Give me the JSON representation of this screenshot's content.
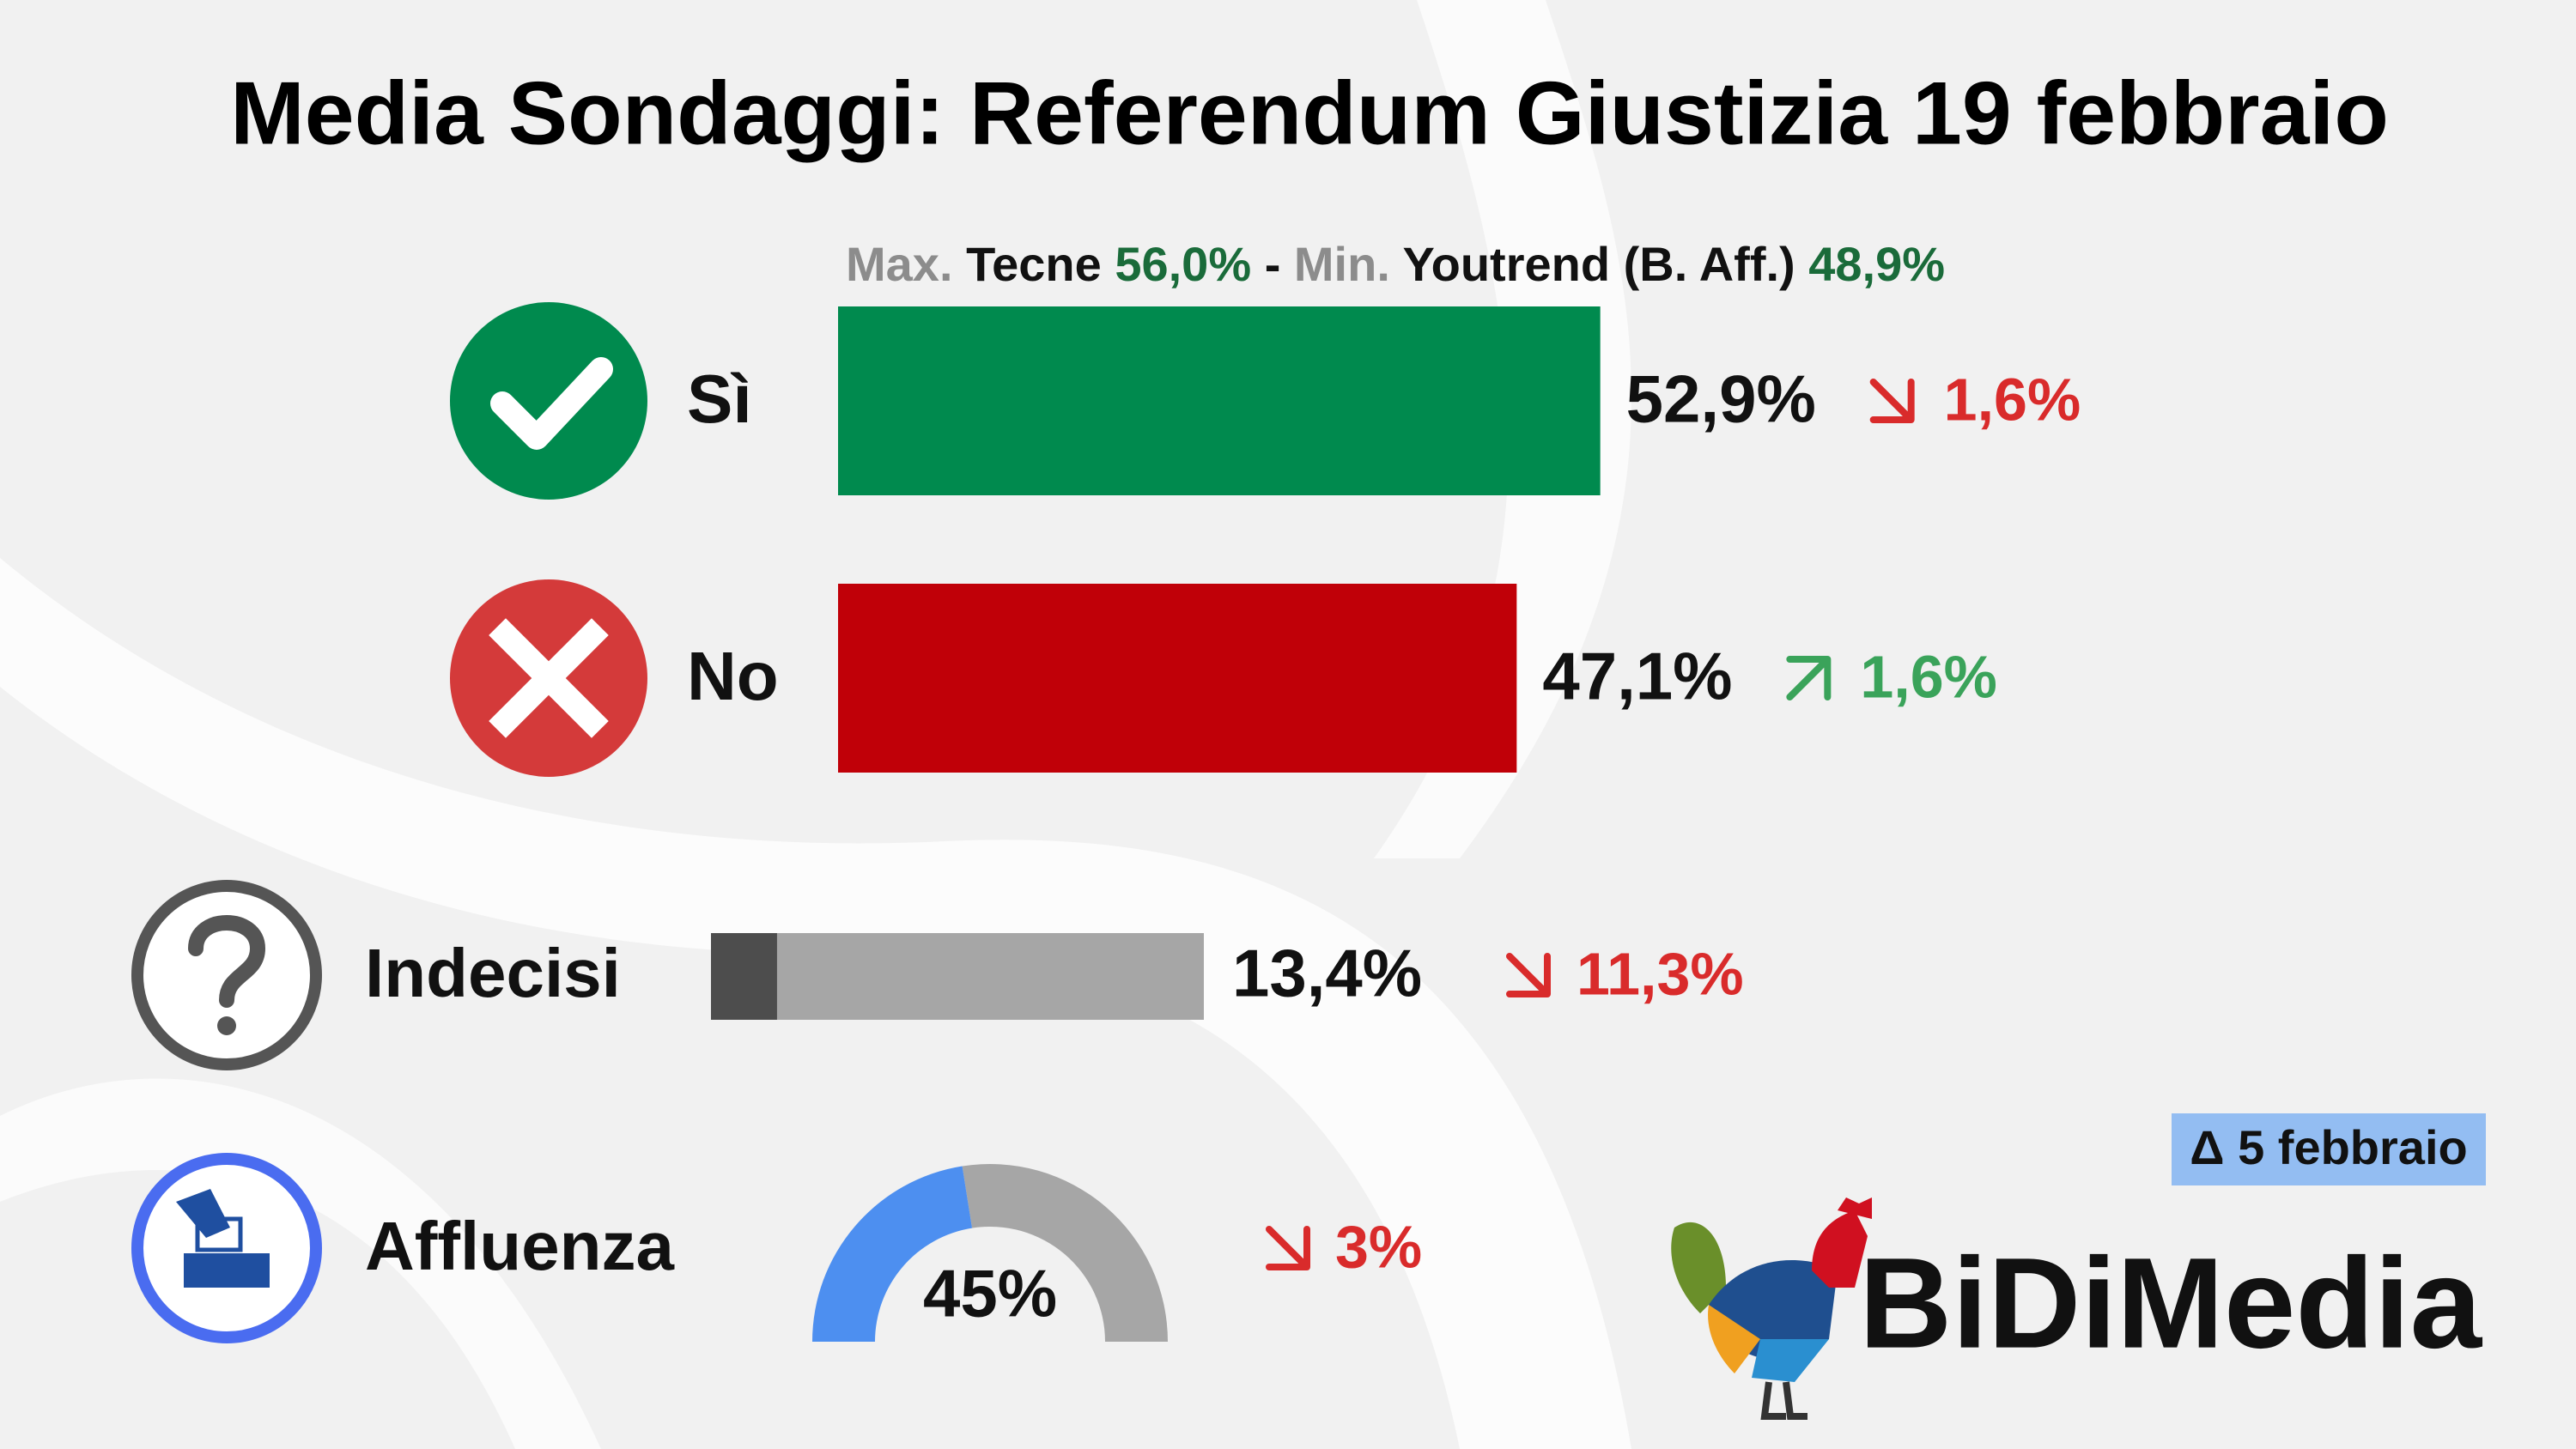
{
  "chart_data": {
    "type": "bar",
    "title": "Media Sondaggi: Referendum Giustizia 19 febbraio",
    "range_note": {
      "max_label": "Max.",
      "max_source": "Tecne",
      "max_value": 56.0,
      "max_value_label": "56,0%",
      "separator": "-",
      "min_label": "Min.",
      "min_source": "Youtrend (B. Aff.)",
      "min_value": 48.9,
      "min_value_label": "48,9%"
    },
    "categories": [
      "Sì",
      "No"
    ],
    "values": [
      52.9,
      47.1
    ],
    "value_labels": [
      "52,9%",
      "47,1%"
    ],
    "colors": [
      "#008a4e",
      "#c00008"
    ],
    "changes": [
      1.6,
      1.6
    ],
    "change_labels": [
      "1,6%",
      "1,6%"
    ],
    "change_directions": [
      "down",
      "up"
    ],
    "xlim": [
      0,
      100
    ],
    "undecided": {
      "label": "Indecisi",
      "value": 13.4,
      "value_label": "13,4%",
      "change": 11.3,
      "change_label": "11,3%",
      "change_direction": "down"
    },
    "turnout": {
      "label": "Affluenza",
      "value": 45,
      "value_label": "45%",
      "change": 3,
      "change_label": "3%",
      "change_direction": "down"
    },
    "comparison_note": "Δ 5 febbraio",
    "source": "BiDiMedia"
  }
}
